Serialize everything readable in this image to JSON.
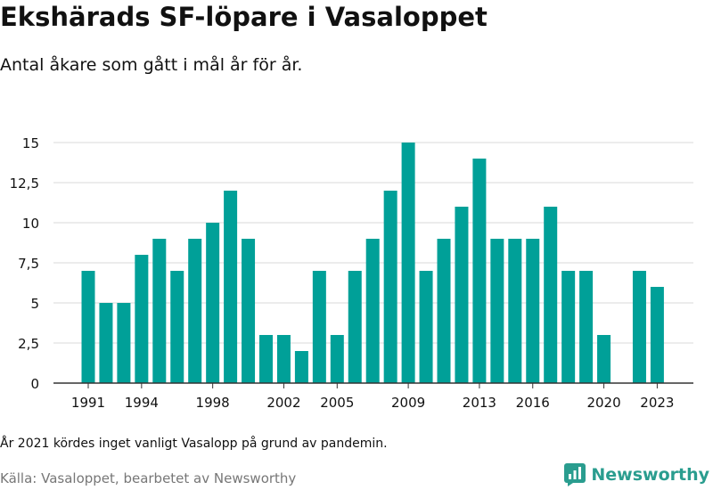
{
  "header": {
    "title": "Ekshärads SF-löpare i Vasaloppet",
    "subtitle": "Antal åkare som gått i mål år för år."
  },
  "footer": {
    "note": "År 2021 kördes inget vanligt Vasalopp på grund av pandemin.",
    "source": "Källa: Vasaloppet, bearbetet av Newsworthy",
    "brand": "Newsworthy",
    "brand_icon": "newsworthy-logo-icon"
  },
  "colors": {
    "bar": "#00a098",
    "grid": "#d9d9d9",
    "axis": "#333333",
    "brand": "#2a9d8f"
  },
  "chart_data": {
    "type": "bar",
    "x": [
      1991,
      1992,
      1993,
      1994,
      1995,
      1996,
      1997,
      1998,
      1999,
      2000,
      2001,
      2002,
      2003,
      2004,
      2005,
      2006,
      2007,
      2008,
      2009,
      2010,
      2011,
      2012,
      2013,
      2014,
      2015,
      2016,
      2017,
      2018,
      2019,
      2020,
      2021,
      2022,
      2023
    ],
    "values": [
      7,
      5,
      5,
      8,
      9,
      7,
      9,
      10,
      12,
      9,
      3,
      3,
      2,
      7,
      3,
      7,
      9,
      12,
      15,
      7,
      9,
      11,
      14,
      9,
      9,
      9,
      11,
      7,
      7,
      3,
      null,
      7,
      6
    ],
    "xticks": [
      1991,
      1994,
      1998,
      2002,
      2005,
      2009,
      2013,
      2016,
      2020,
      2023
    ],
    "yticks": [
      0,
      2.5,
      5,
      7.5,
      10,
      12.5,
      15
    ],
    "ytick_labels": [
      "0",
      "2,5",
      "5",
      "7,5",
      "10",
      "12,5",
      "15"
    ],
    "ylim": [
      0,
      15
    ],
    "grid": true,
    "legend": "none"
  }
}
